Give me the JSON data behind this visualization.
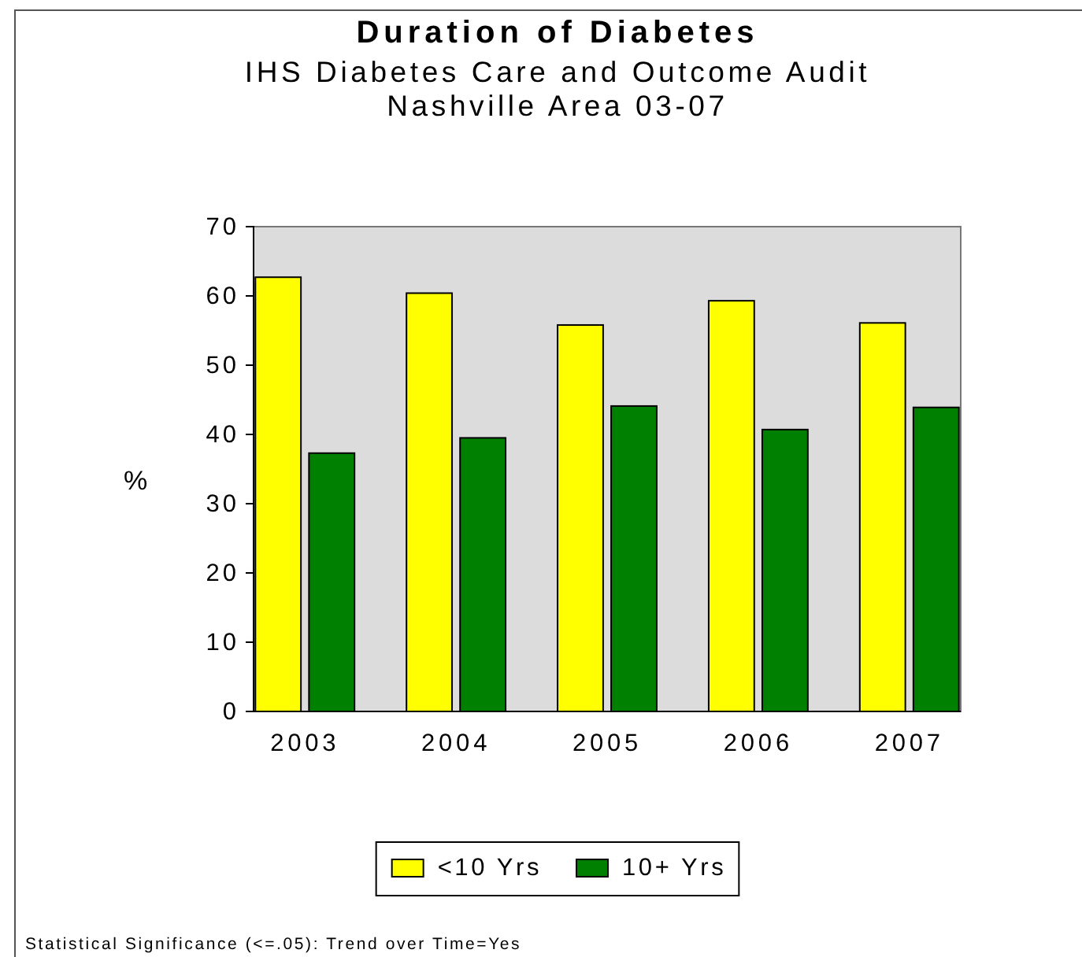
{
  "chart_data": {
    "type": "bar",
    "title": "Duration of Diabetes",
    "subtitle": "IHS Diabetes Care and Outcome Audit\nNashville Area 03-07",
    "ylabel": "%",
    "categories": [
      "2003",
      "2004",
      "2005",
      "2006",
      "2007"
    ],
    "series": [
      {
        "name": "<10 Yrs",
        "color": "#ffff00",
        "values": [
          62.7,
          60.4,
          55.8,
          59.3,
          56.1
        ]
      },
      {
        "name": "10+ Yrs",
        "color": "#008000",
        "values": [
          37.3,
          39.5,
          44.1,
          40.7,
          43.9
        ]
      }
    ],
    "ylim": [
      0,
      70
    ],
    "yticks": [
      0,
      10,
      20,
      30,
      40,
      50,
      60,
      70
    ],
    "legend": "bottom",
    "annotations": [
      "Statistical Significance (<=.05): Trend over Time=Yes"
    ]
  }
}
